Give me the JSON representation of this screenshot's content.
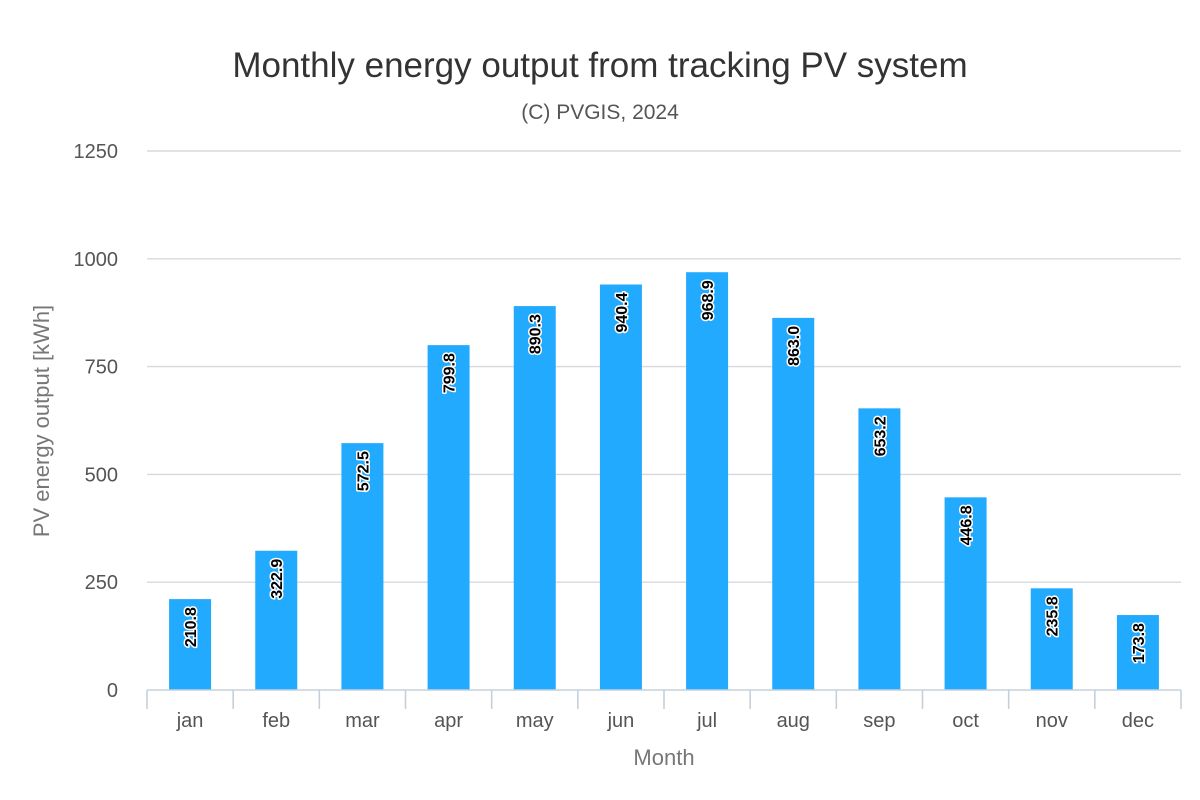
{
  "chart_data": {
    "type": "bar",
    "title": "Monthly energy output from tracking PV system",
    "subtitle": "(C) PVGIS, 2024",
    "xlabel": "Month",
    "ylabel": "PV energy output [kWh]",
    "categories": [
      "jan",
      "feb",
      "mar",
      "apr",
      "may",
      "jun",
      "jul",
      "aug",
      "sep",
      "oct",
      "nov",
      "dec"
    ],
    "values": [
      210.8,
      322.9,
      572.5,
      799.8,
      890.3,
      940.4,
      968.9,
      863.0,
      653.2,
      446.8,
      235.8,
      173.8
    ],
    "data_labels": [
      "210.8",
      "322.9",
      "572.5",
      "799.8",
      "890.3",
      "940.4",
      "968.9",
      "863.0",
      "653.2",
      "446.8",
      "235.8",
      "173.8"
    ],
    "ylim": [
      0,
      1250
    ],
    "yticks": [
      0,
      250,
      500,
      750,
      1000,
      1250
    ],
    "ytick_labels": [
      "0",
      "250",
      "500",
      "750",
      "1000",
      "1250"
    ],
    "grid": true,
    "legend": "none",
    "bar_color": "#22aaff",
    "data_label_rotation": "vertical"
  }
}
